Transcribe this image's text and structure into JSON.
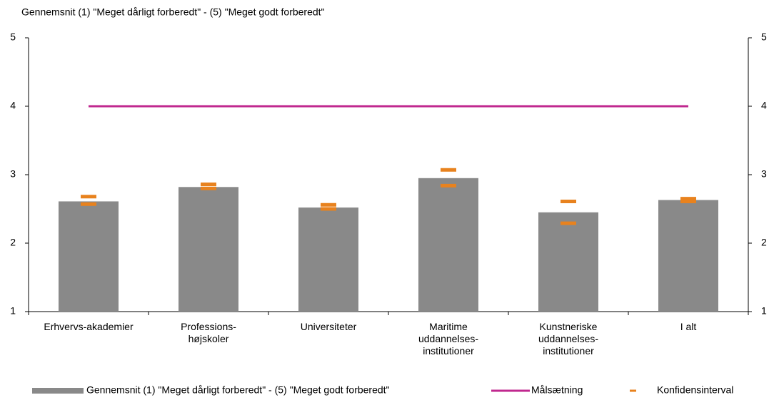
{
  "chart_data": {
    "type": "bar",
    "title": "Gennemsnit (1) \"Meget dårligt forberedt\" - (5) \"Meget godt forberedt\"",
    "categories": [
      "Erhvervs-akademier",
      "Professions-\nhøjskoler",
      "Universiteter",
      "Maritime\nuddannelses-\ninstitutioner",
      "Kunstneriske\nuddannelses-\ninstitutioner",
      "I alt"
    ],
    "series": [
      {
        "name": "Gennemsnit (1) \"Meget dårligt forberedt\" - (5) \"Meget godt forberedt\"",
        "type": "bar",
        "color": "#898989",
        "values": [
          2.61,
          2.82,
          2.52,
          2.95,
          2.45,
          2.63
        ]
      },
      {
        "name": "Målsætning",
        "type": "line",
        "color": "#c0288f",
        "values": [
          4,
          4,
          4,
          4,
          4,
          4
        ]
      },
      {
        "name": "Konfidensinterval",
        "type": "interval",
        "color": "#e8821e",
        "upper": [
          2.68,
          2.86,
          2.56,
          3.07,
          2.61,
          2.65
        ],
        "lower": [
          2.57,
          2.8,
          2.5,
          2.84,
          2.29,
          2.61
        ]
      }
    ],
    "ylim": [
      1,
      5
    ],
    "yticks": [
      1,
      2,
      3,
      4,
      5
    ],
    "y2lim": [
      1,
      5
    ],
    "y2ticks": [
      1,
      2,
      3,
      4,
      5
    ],
    "grid": false,
    "legend": "bottom"
  }
}
